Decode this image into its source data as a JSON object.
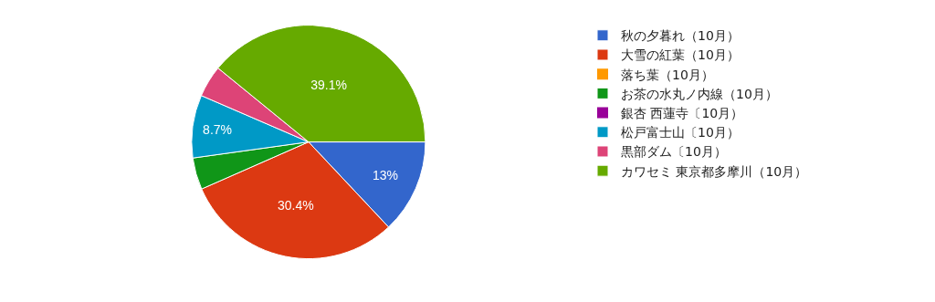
{
  "chart_data": {
    "type": "pie",
    "categories": [
      "秋の夕暮れ（10月）",
      "大雪の紅葉（10月）",
      "落ち葉（10月）",
      "お茶の水丸ノ内線（10月）",
      "銀杏 西蓮寺〔10月）",
      "松戸富士山〔10月）",
      "黒部ダム〔10月）",
      "カワセミ 東京都多摩川（10月）"
    ],
    "values": [
      13,
      30.4,
      0,
      4.4,
      0,
      8.7,
      4.4,
      39.1
    ],
    "value_labels": [
      "13%",
      "30.4%",
      null,
      null,
      null,
      "8.7%",
      null,
      "39.1%"
    ],
    "colors": [
      "#3366cc",
      "#dc3912",
      "#ff9900",
      "#109618",
      "#990099",
      "#0099c6",
      "#dd4477",
      "#66aa00"
    ],
    "legend": "right"
  }
}
